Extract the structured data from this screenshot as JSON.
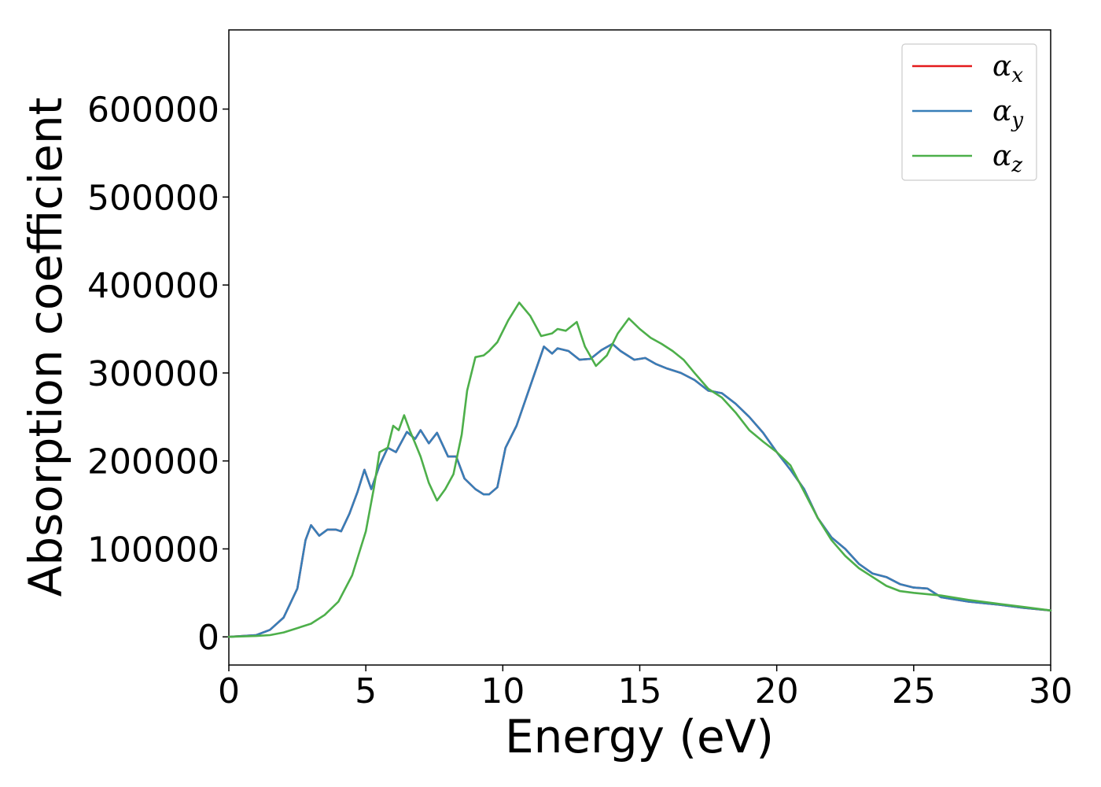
{
  "chart_data": {
    "type": "line",
    "title": "",
    "xlabel": "Energy (eV)",
    "ylabel": "Absorption coefficient",
    "xlim": [
      0,
      30
    ],
    "ylim": [
      -32000,
      690000
    ],
    "xticks": [
      "0",
      "5",
      "10",
      "15",
      "20",
      "25",
      "30"
    ],
    "yticks": [
      "0",
      "100000",
      "200000",
      "300000",
      "400000",
      "500000",
      "600000"
    ],
    "grid": false,
    "legend_position": "top-right",
    "colors": {
      "alpha_x": "#e41a1c",
      "alpha_y": "#377eb8",
      "alpha_z": "#4daf4a"
    },
    "legend": [
      {
        "key": "alpha_x",
        "symbol": "α",
        "sub": "x"
      },
      {
        "key": "alpha_y",
        "symbol": "α",
        "sub": "y"
      },
      {
        "key": "alpha_z",
        "symbol": "α",
        "sub": "z"
      }
    ],
    "series": [
      {
        "name": "α_x",
        "key": "alpha_x",
        "x": [
          0,
          1,
          1.5,
          2,
          2.5,
          2.8,
          3,
          3.3,
          3.6,
          3.9,
          4.1,
          4.4,
          4.7,
          4.95,
          5.2,
          5.5,
          5.8,
          6.1,
          6.5,
          6.8,
          7.0,
          7.3,
          7.6,
          8.0,
          8.3,
          8.6,
          9.0,
          9.3,
          9.5,
          9.8,
          10.1,
          10.5,
          11.0,
          11.5,
          11.8,
          12.0,
          12.4,
          12.8,
          13.2,
          13.6,
          14.0,
          14.3,
          14.8,
          15.2,
          15.6,
          16.0,
          16.5,
          17.0,
          17.5,
          18.0,
          18.5,
          19.0,
          19.5,
          20.0,
          20.5,
          21.0,
          21.5,
          22.0,
          22.5,
          23.0,
          23.5,
          24.0,
          24.5,
          25.0,
          25.5,
          26.0,
          27.0,
          28.0,
          29.0,
          30.0
        ],
        "y": [
          0,
          2000,
          8000,
          22000,
          55000,
          110000,
          127000,
          115000,
          122000,
          122000,
          120000,
          140000,
          165000,
          190000,
          168000,
          195000,
          215000,
          210000,
          233000,
          225000,
          235000,
          220000,
          232000,
          205000,
          205000,
          180000,
          168000,
          162000,
          162000,
          170000,
          215000,
          240000,
          285000,
          330000,
          322000,
          328000,
          325000,
          315000,
          316000,
          326000,
          333000,
          325000,
          315000,
          317000,
          310000,
          305000,
          300000,
          292000,
          280000,
          277000,
          265000,
          250000,
          232000,
          210000,
          190000,
          168000,
          135000,
          113000,
          100000,
          83000,
          72000,
          68000,
          60000,
          56000,
          55000,
          45000,
          40000,
          37000,
          33000,
          30000
        ]
      },
      {
        "name": "α_y",
        "key": "alpha_y",
        "x": [
          0,
          1,
          1.5,
          2,
          2.5,
          2.8,
          3,
          3.3,
          3.6,
          3.9,
          4.1,
          4.4,
          4.7,
          4.95,
          5.2,
          5.5,
          5.8,
          6.1,
          6.5,
          6.8,
          7.0,
          7.3,
          7.6,
          8.0,
          8.3,
          8.6,
          9.0,
          9.3,
          9.5,
          9.8,
          10.1,
          10.5,
          11.0,
          11.5,
          11.8,
          12.0,
          12.4,
          12.8,
          13.2,
          13.6,
          14.0,
          14.3,
          14.8,
          15.2,
          15.6,
          16.0,
          16.5,
          17.0,
          17.5,
          18.0,
          18.5,
          19.0,
          19.5,
          20.0,
          20.5,
          21.0,
          21.5,
          22.0,
          22.5,
          23.0,
          23.5,
          24.0,
          24.5,
          25.0,
          25.5,
          26.0,
          27.0,
          28.0,
          29.0,
          30.0
        ],
        "y": [
          0,
          2000,
          8000,
          22000,
          55000,
          110000,
          127000,
          115000,
          122000,
          122000,
          120000,
          140000,
          165000,
          190000,
          168000,
          195000,
          215000,
          210000,
          233000,
          225000,
          235000,
          220000,
          232000,
          205000,
          205000,
          180000,
          168000,
          162000,
          162000,
          170000,
          215000,
          240000,
          285000,
          330000,
          322000,
          328000,
          325000,
          315000,
          316000,
          326000,
          333000,
          325000,
          315000,
          317000,
          310000,
          305000,
          300000,
          292000,
          280000,
          277000,
          265000,
          250000,
          232000,
          210000,
          190000,
          168000,
          135000,
          113000,
          100000,
          83000,
          72000,
          68000,
          60000,
          56000,
          55000,
          45000,
          40000,
          37000,
          33000,
          30000
        ]
      },
      {
        "name": "α_z",
        "key": "alpha_z",
        "x": [
          0,
          1,
          1.5,
          2,
          2.5,
          3,
          3.5,
          4,
          4.5,
          5,
          5.3,
          5.5,
          5.8,
          6.0,
          6.2,
          6.4,
          6.6,
          6.8,
          7.0,
          7.3,
          7.6,
          7.9,
          8.2,
          8.5,
          8.7,
          9.0,
          9.3,
          9.5,
          9.8,
          10.2,
          10.6,
          11.0,
          11.4,
          11.8,
          12.0,
          12.3,
          12.7,
          13.0,
          13.4,
          13.8,
          14.2,
          14.6,
          15.0,
          15.4,
          15.8,
          16.2,
          16.6,
          17.0,
          17.5,
          18.0,
          18.5,
          19.0,
          19.5,
          20.0,
          20.5,
          21.0,
          21.5,
          22.0,
          22.5,
          23.0,
          23.5,
          24.0,
          24.5,
          25.0,
          26.0,
          27.0,
          28.0,
          29.0,
          30.0
        ],
        "y": [
          0,
          1000,
          2000,
          5000,
          10000,
          15000,
          25000,
          40000,
          70000,
          120000,
          170000,
          210000,
          215000,
          240000,
          235000,
          252000,
          235000,
          220000,
          205000,
          175000,
          155000,
          168000,
          185000,
          230000,
          280000,
          318000,
          320000,
          325000,
          335000,
          360000,
          380000,
          365000,
          342000,
          345000,
          350000,
          348000,
          358000,
          330000,
          308000,
          320000,
          345000,
          362000,
          350000,
          340000,
          333000,
          325000,
          315000,
          300000,
          282000,
          272000,
          255000,
          235000,
          222000,
          210000,
          195000,
          165000,
          135000,
          110000,
          92000,
          78000,
          68000,
          58000,
          52000,
          50000,
          47000,
          42000,
          38000,
          34000,
          30000
        ]
      }
    ]
  }
}
